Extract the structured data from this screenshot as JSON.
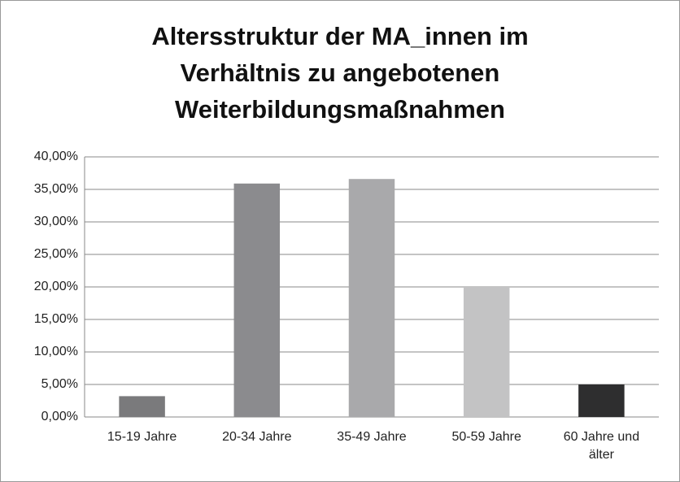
{
  "chart_data": {
    "type": "bar",
    "title": "Altersstruktur der MA_innen im\nVerhältnis zu angebotenen\nWeiterbildungsmaßnahmen",
    "categories": [
      "15-19 Jahre",
      "20-34 Jahre",
      "35-49 Jahre",
      "50-59 Jahre",
      "60 Jahre und\nälter"
    ],
    "values": [
      3.2,
      35.9,
      36.6,
      20.0,
      5.0
    ],
    "colors": [
      "#7a7a7c",
      "#8b8b8e",
      "#a9a9ab",
      "#c3c3c4",
      "#2e2e2f"
    ],
    "ylim": [
      0,
      40
    ],
    "yticks": [
      {
        "value": 0,
        "label": "0,00%"
      },
      {
        "value": 5,
        "label": "5,00%"
      },
      {
        "value": 10,
        "label": "10,00%"
      },
      {
        "value": 15,
        "label": "15,00%"
      },
      {
        "value": 20,
        "label": "20,00%"
      },
      {
        "value": 25,
        "label": "25,00%"
      },
      {
        "value": 30,
        "label": "30,00%"
      },
      {
        "value": 35,
        "label": "35,00%"
      },
      {
        "value": 40,
        "label": "40,00%"
      }
    ],
    "grid": true
  }
}
